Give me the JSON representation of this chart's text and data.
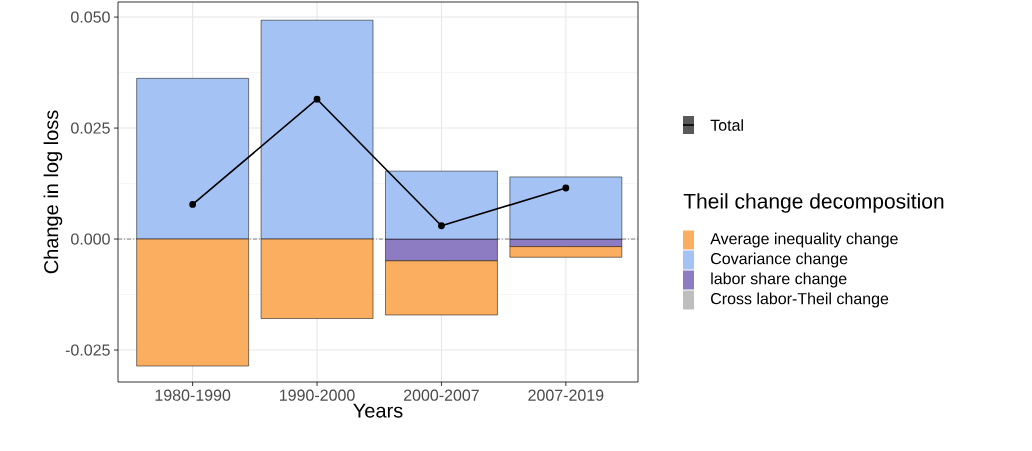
{
  "chart_data": {
    "type": "bar",
    "stacked": true,
    "xlabel": "Years",
    "ylabel": "Change in log loss",
    "legend_title": "Theil change decomposition",
    "categories": [
      "1980-1990",
      "1990-2000",
      "2000-2007",
      "2007-2019"
    ],
    "series": [
      {
        "name": "Cross labor-Theil change",
        "color": "#bebebe",
        "values": [
          null,
          null,
          null,
          null
        ]
      },
      {
        "name": "labor share change",
        "color": "#8e7cc3",
        "values": [
          0,
          0,
          -0.0049,
          -0.0017
        ]
      },
      {
        "name": "Covariance change",
        "color": "#a4c2f4",
        "values": [
          0.0362,
          0.0493,
          0.0153,
          0.014
        ]
      },
      {
        "name": "Average inequality change",
        "color": "#fcae60",
        "values": [
          -0.0286,
          -0.0179,
          -0.0122,
          -0.0024
        ]
      },
      {
        "name": "Total",
        "type": "line",
        "color": "#000000",
        "marker": "circle",
        "values": [
          0.0078,
          0.0315,
          0.003,
          0.0115
        ]
      }
    ],
    "ylim": [
      -0.0322,
      0.0534
    ],
    "yticks": [
      {
        "value": 0.05,
        "label": "0.050"
      },
      {
        "value": 0.025,
        "label": "0.025"
      },
      {
        "value": 0,
        "label": "0.000"
      },
      {
        "value": -0.025,
        "label": "-0.025"
      }
    ],
    "ref_lines": [
      {
        "axis": "y",
        "value": 0,
        "color": "#555555",
        "line_style": "dashed"
      }
    ],
    "grid": true,
    "legend": "right"
  }
}
